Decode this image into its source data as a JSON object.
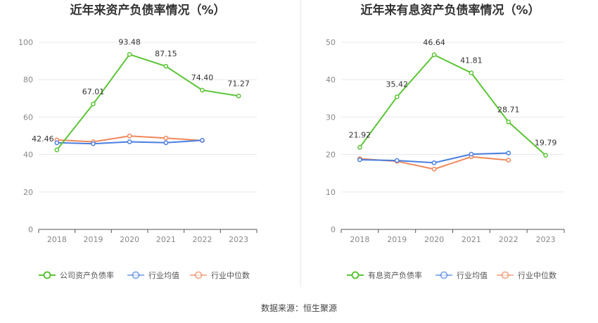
{
  "source_text": "数据来源：恒生聚源",
  "chart_data": [
    {
      "type": "line",
      "title": "近年来资产负债率情况（%）",
      "categories": [
        "2018",
        "2019",
        "2020",
        "2021",
        "2022",
        "2023"
      ],
      "ylim": [
        0,
        100
      ],
      "yticks": [
        0,
        20,
        40,
        60,
        80,
        100
      ],
      "ytick_labels": [
        "0",
        "20",
        "40",
        "60",
        "80",
        "100"
      ],
      "grid": true,
      "legend_position": "bottom",
      "series": [
        {
          "name": "公司资产负债率",
          "color": "#5cc536",
          "values": [
            42.46,
            67.01,
            93.48,
            87.15,
            74.4,
            71.27
          ],
          "labels": [
            "42.46",
            "67.01",
            "93.48",
            "87.15",
            "74.40",
            "71.27"
          ]
        },
        {
          "name": "行业均值",
          "color": "#4a7fe0",
          "values": [
            46.3,
            45.8,
            46.8,
            46.3,
            47.6,
            null
          ]
        },
        {
          "name": "行业中位数",
          "color": "#f0875a",
          "values": [
            47.8,
            46.8,
            49.9,
            48.8,
            47.5,
            null
          ]
        }
      ]
    },
    {
      "type": "line",
      "title": "近年来有息资产负债率情况（%）",
      "categories": [
        "2018",
        "2019",
        "2020",
        "2021",
        "2022",
        "2023"
      ],
      "ylim": [
        0,
        50
      ],
      "yticks": [
        0,
        10,
        20,
        30,
        40,
        50
      ],
      "ytick_labels": [
        "0",
        "10",
        "20",
        "30",
        "40",
        "50"
      ],
      "grid": true,
      "legend_position": "bottom",
      "series": [
        {
          "name": "有息资产负债率",
          "color": "#5cc536",
          "values": [
            21.92,
            35.42,
            46.64,
            41.81,
            28.71,
            19.79
          ],
          "labels": [
            "21.92",
            "35.42",
            "46.64",
            "41.81",
            "28.71",
            "19.79"
          ]
        },
        {
          "name": "行业均值",
          "color": "#4a7fe0",
          "values": [
            18.6,
            18.4,
            17.8,
            20.1,
            20.4,
            null
          ]
        },
        {
          "name": "行业中位数",
          "color": "#f0875a",
          "values": [
            18.9,
            18.2,
            16.1,
            19.4,
            18.5,
            null
          ]
        }
      ]
    }
  ]
}
